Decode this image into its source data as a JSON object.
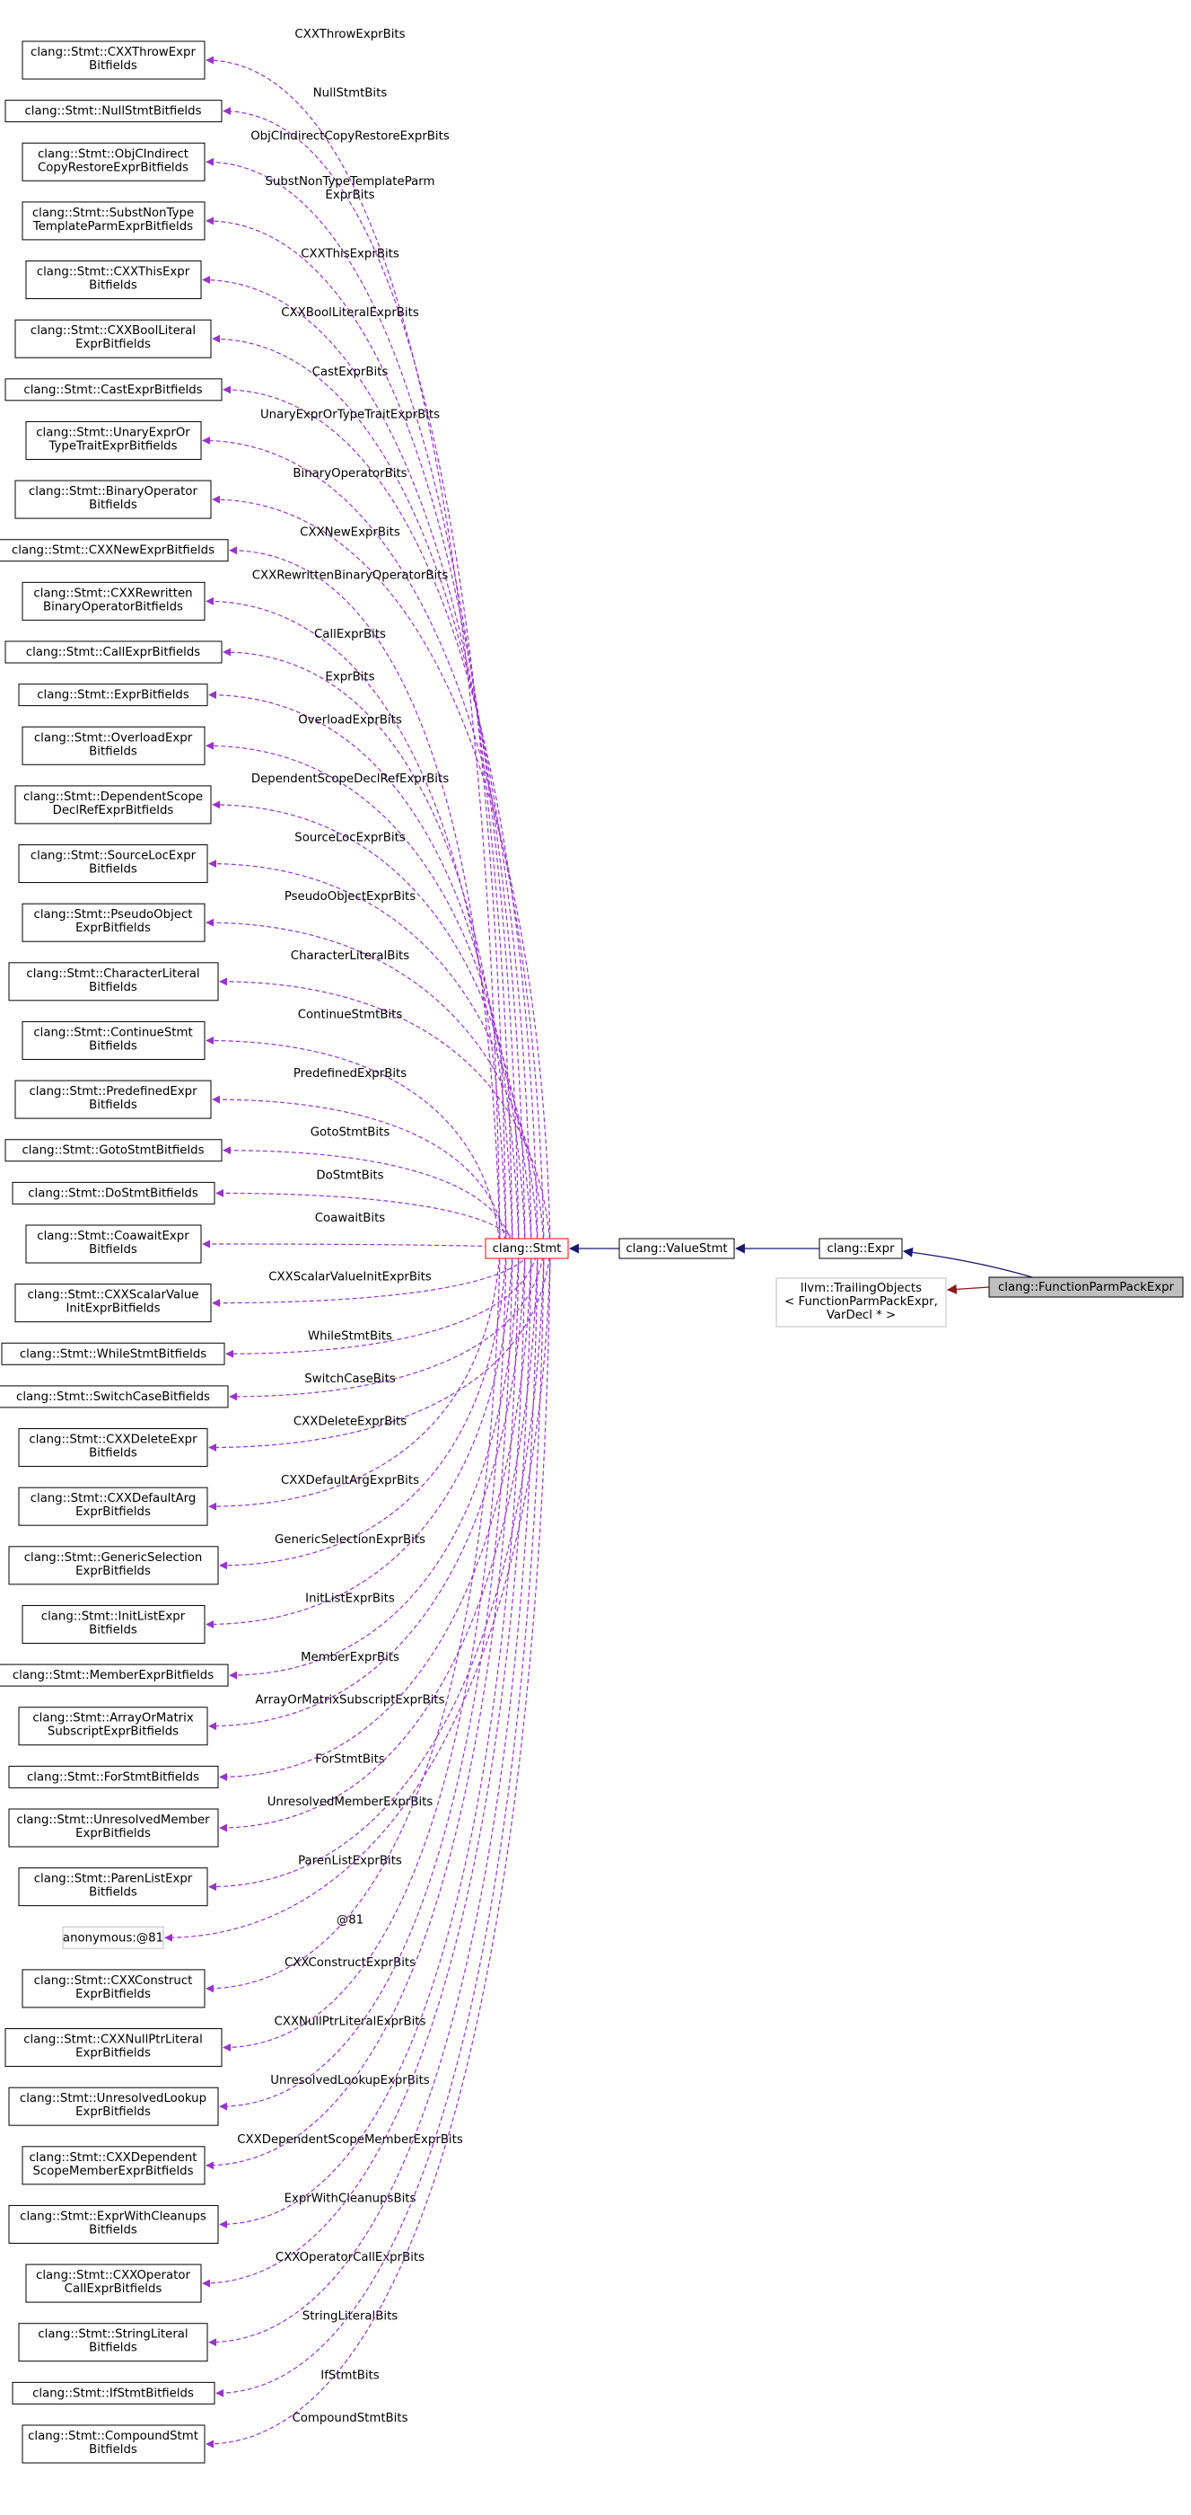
{
  "theme": {
    "member_edge_color": "#9a32cd",
    "inherit_edge_color": "#191970",
    "private_inherit_edge_color": "#8b1a1a",
    "highlight_fill": "#bfbfbf",
    "focus_border": "#ff0000",
    "normal_border": "#000000",
    "muted_border": "#bfbfbf"
  },
  "diagram": {
    "focus_node": "clang::Stmt",
    "chain": [
      {
        "id": "stmt",
        "label": "clang::Stmt",
        "style": "focus"
      },
      {
        "id": "valuestmt",
        "label": "clang::ValueStmt",
        "style": "normal"
      },
      {
        "id": "expr",
        "label": "clang::Expr",
        "style": "normal"
      },
      {
        "id": "fppe",
        "label": "clang::FunctionParmPackExpr",
        "style": "highlight"
      },
      {
        "id": "trailing",
        "lines": [
          "llvm::TrailingObjects",
          "< FunctionParmPackExpr,",
          "VarDecl * >"
        ],
        "style": "muted"
      }
    ],
    "members": [
      {
        "lines": [
          "clang::Stmt::CXXThrowExpr",
          "Bitfields"
        ],
        "edge": "CXXThrowExprBits"
      },
      {
        "lines": [
          "clang::Stmt::NullStmtBitfields"
        ],
        "edge": "NullStmtBits"
      },
      {
        "lines": [
          "clang::Stmt::ObjCIndirect",
          "CopyRestoreExprBitfields"
        ],
        "edge": "ObjCIndirectCopyRestoreExprBits"
      },
      {
        "lines": [
          "clang::Stmt::SubstNonType",
          "TemplateParmExprBitfields"
        ],
        "edge": [
          "SubstNonTypeTemplateParm",
          "ExprBits"
        ]
      },
      {
        "lines": [
          "clang::Stmt::CXXThisExpr",
          "Bitfields"
        ],
        "edge": "CXXThisExprBits"
      },
      {
        "lines": [
          "clang::Stmt::CXXBoolLiteral",
          "ExprBitfields"
        ],
        "edge": "CXXBoolLiteralExprBits"
      },
      {
        "lines": [
          "clang::Stmt::CastExprBitfields"
        ],
        "edge": "CastExprBits"
      },
      {
        "lines": [
          "clang::Stmt::UnaryExprOr",
          "TypeTraitExprBitfields"
        ],
        "edge": "UnaryExprOrTypeTraitExprBits"
      },
      {
        "lines": [
          "clang::Stmt::BinaryOperator",
          "Bitfields"
        ],
        "edge": "BinaryOperatorBits"
      },
      {
        "lines": [
          "clang::Stmt::CXXNewExprBitfields"
        ],
        "edge": "CXXNewExprBits"
      },
      {
        "lines": [
          "clang::Stmt::CXXRewritten",
          "BinaryOperatorBitfields"
        ],
        "edge": "CXXRewrittenBinaryOperatorBits"
      },
      {
        "lines": [
          "clang::Stmt::CallExprBitfields"
        ],
        "edge": "CallExprBits"
      },
      {
        "lines": [
          "clang::Stmt::ExprBitfields"
        ],
        "edge": "ExprBits"
      },
      {
        "lines": [
          "clang::Stmt::OverloadExpr",
          "Bitfields"
        ],
        "edge": "OverloadExprBits"
      },
      {
        "lines": [
          "clang::Stmt::DependentScope",
          "DeclRefExprBitfields"
        ],
        "edge": "DependentScopeDeclRefExprBits"
      },
      {
        "lines": [
          "clang::Stmt::SourceLocExpr",
          "Bitfields"
        ],
        "edge": "SourceLocExprBits"
      },
      {
        "lines": [
          "clang::Stmt::PseudoObject",
          "ExprBitfields"
        ],
        "edge": "PseudoObjectExprBits"
      },
      {
        "lines": [
          "clang::Stmt::CharacterLiteral",
          "Bitfields"
        ],
        "edge": "CharacterLiteralBits"
      },
      {
        "lines": [
          "clang::Stmt::ContinueStmt",
          "Bitfields"
        ],
        "edge": "ContinueStmtBits"
      },
      {
        "lines": [
          "clang::Stmt::PredefinedExpr",
          "Bitfields"
        ],
        "edge": "PredefinedExprBits"
      },
      {
        "lines": [
          "clang::Stmt::GotoStmtBitfields"
        ],
        "edge": "GotoStmtBits"
      },
      {
        "lines": [
          "clang::Stmt::DoStmtBitfields"
        ],
        "edge": "DoStmtBits"
      },
      {
        "lines": [
          "clang::Stmt::CoawaitExpr",
          "Bitfields"
        ],
        "edge": "CoawaitBits"
      },
      {
        "lines": [
          "clang::Stmt::CXXScalarValue",
          "InitExprBitfields"
        ],
        "edge": "CXXScalarValueInitExprBits"
      },
      {
        "lines": [
          "clang::Stmt::WhileStmtBitfields"
        ],
        "edge": "WhileStmtBits"
      },
      {
        "lines": [
          "clang::Stmt::SwitchCaseBitfields"
        ],
        "edge": "SwitchCaseBits"
      },
      {
        "lines": [
          "clang::Stmt::CXXDeleteExpr",
          "Bitfields"
        ],
        "edge": "CXXDeleteExprBits"
      },
      {
        "lines": [
          "clang::Stmt::CXXDefaultArg",
          "ExprBitfields"
        ],
        "edge": "CXXDefaultArgExprBits"
      },
      {
        "lines": [
          "clang::Stmt::GenericSelection",
          "ExprBitfields"
        ],
        "edge": "GenericSelectionExprBits"
      },
      {
        "lines": [
          "clang::Stmt::InitListExpr",
          "Bitfields"
        ],
        "edge": "InitListExprBits"
      },
      {
        "lines": [
          "clang::Stmt::MemberExprBitfields"
        ],
        "edge": "MemberExprBits"
      },
      {
        "lines": [
          "clang::Stmt::ArrayOrMatrix",
          "SubscriptExprBitfields"
        ],
        "edge": "ArrayOrMatrixSubscriptExprBits"
      },
      {
        "lines": [
          "clang::Stmt::ForStmtBitfields"
        ],
        "edge": "ForStmtBits"
      },
      {
        "lines": [
          "clang::Stmt::UnresolvedMember",
          "ExprBitfields"
        ],
        "edge": "UnresolvedMemberExprBits"
      },
      {
        "lines": [
          "clang::Stmt::ParenListExpr",
          "Bitfields"
        ],
        "edge": "ParenListExprBits"
      },
      {
        "lines": [
          "anonymous:@81"
        ],
        "edge": "@81",
        "muted": true
      },
      {
        "lines": [
          "clang::Stmt::CXXConstruct",
          "ExprBitfields"
        ],
        "edge": "CXXConstructExprBits"
      },
      {
        "lines": [
          "clang::Stmt::CXXNullPtrLiteral",
          "ExprBitfields"
        ],
        "edge": "CXXNullPtrLiteralExprBits"
      },
      {
        "lines": [
          "clang::Stmt::UnresolvedLookup",
          "ExprBitfields"
        ],
        "edge": "UnresolvedLookupExprBits"
      },
      {
        "lines": [
          "clang::Stmt::CXXDependent",
          "ScopeMemberExprBitfields"
        ],
        "edge": "CXXDependentScopeMemberExprBits"
      },
      {
        "lines": [
          "clang::Stmt::ExprWithCleanups",
          "Bitfields"
        ],
        "edge": "ExprWithCleanupsBits"
      },
      {
        "lines": [
          "clang::Stmt::CXXOperator",
          "CallExprBitfields"
        ],
        "edge": "CXXOperatorCallExprBits"
      },
      {
        "lines": [
          "clang::Stmt::StringLiteral",
          "Bitfields"
        ],
        "edge": "StringLiteralBits"
      },
      {
        "lines": [
          "clang::Stmt::IfStmtBitfields"
        ],
        "edge": "IfStmtBits"
      },
      {
        "lines": [
          "clang::Stmt::CompoundStmt",
          "Bitfields"
        ],
        "edge": "CompoundStmtBits"
      }
    ]
  }
}
